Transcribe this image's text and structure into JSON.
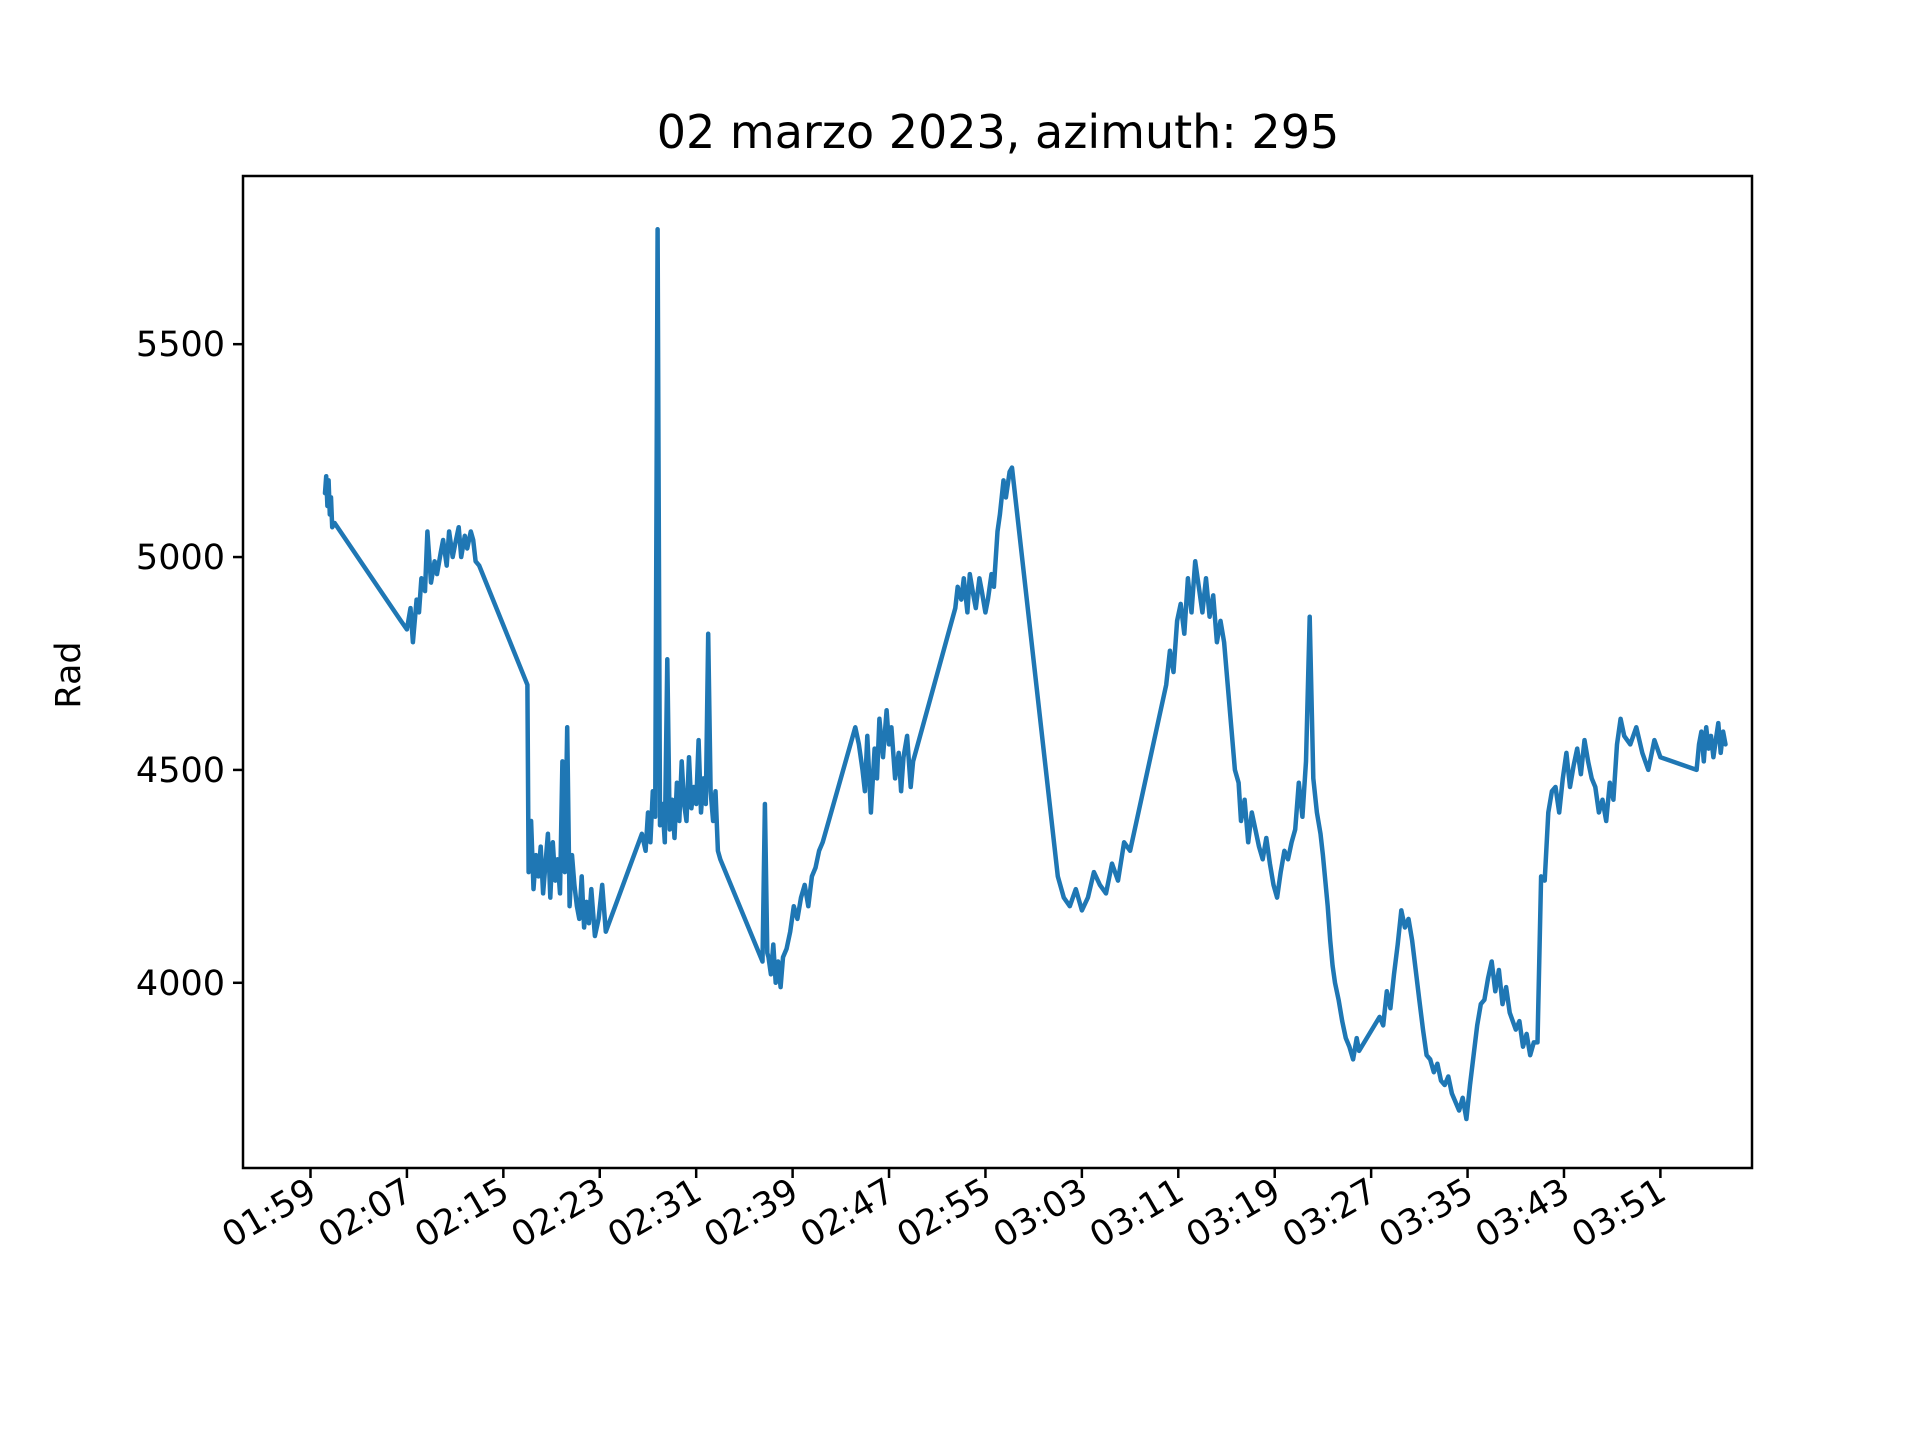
{
  "chart_data": {
    "type": "line",
    "title": "02 marzo 2023, azimuth: 295",
    "xlabel": "",
    "ylabel": "Rad",
    "x_ticks": [
      "01:59",
      "02:07",
      "02:15",
      "02:23",
      "02:31",
      "02:39",
      "02:47",
      "02:55",
      "03:03",
      "03:11",
      "03:19",
      "03:27",
      "03:35",
      "03:43",
      "03:51"
    ],
    "y_ticks": [
      4000,
      4500,
      5000,
      5500
    ],
    "xlim_minutes_of_day": [
      113.4,
      238.6
    ],
    "ylim": [
      3565,
      5895
    ],
    "grid": false,
    "legend": "none",
    "colors": {
      "series": "#1f77b4"
    },
    "series": [
      {
        "x_minutes_of_day": [
          120.2,
          120.3,
          120.4,
          120.5,
          120.6,
          120.7,
          120.8,
          121.0,
          126.5,
          127.0,
          127.3,
          127.5,
          127.8,
          128.0,
          128.2,
          128.5,
          128.7,
          129.0,
          129.3,
          129.5,
          129.8,
          130.0,
          130.3,
          130.5,
          130.8,
          131.0,
          131.3,
          131.5,
          131.8,
          132.0,
          132.3,
          132.5,
          132.7,
          133.0,
          137.0,
          137.1,
          137.3,
          137.5,
          137.7,
          137.9,
          138.1,
          138.3,
          138.5,
          138.7,
          138.9,
          139.1,
          139.3,
          139.5,
          139.7,
          139.9,
          140.1,
          140.3,
          140.5,
          140.7,
          140.9,
          141.1,
          141.3,
          141.5,
          141.7,
          141.9,
          142.1,
          142.3,
          142.6,
          142.9,
          143.2,
          143.5,
          146.5,
          146.8,
          147.0,
          147.2,
          147.4,
          147.6,
          147.8,
          148.0,
          148.2,
          148.4,
          148.6,
          148.8,
          149.0,
          149.2,
          149.4,
          149.6,
          149.8,
          150.0,
          150.2,
          150.4,
          150.6,
          150.8,
          151.0,
          151.2,
          151.4,
          151.6,
          151.8,
          152.0,
          152.2,
          152.4,
          152.6,
          152.8,
          153.0,
          156.5,
          156.7,
          156.9,
          157.0,
          157.2,
          157.4,
          157.6,
          157.8,
          158.0,
          158.2,
          158.5,
          158.8,
          159.1,
          159.4,
          159.7,
          160.0,
          160.3,
          160.6,
          160.9,
          161.2,
          161.5,
          164.2,
          164.5,
          164.8,
          165.0,
          165.2,
          165.5,
          165.8,
          166.0,
          166.2,
          166.5,
          166.8,
          167.0,
          167.2,
          167.5,
          167.8,
          168.0,
          168.2,
          168.5,
          168.8,
          169.0,
          172.5,
          172.7,
          173.0,
          173.2,
          173.5,
          173.7,
          174.0,
          174.2,
          174.5,
          174.7,
          175.0,
          175.2,
          175.5,
          175.7,
          176.0,
          176.2,
          176.5,
          176.7,
          177.0,
          177.2,
          181.0,
          181.5,
          182.0,
          182.5,
          183.0,
          183.5,
          184.0,
          184.5,
          185.0,
          185.5,
          186.0,
          186.5,
          187.0,
          190.0,
          190.3,
          190.6,
          190.9,
          191.2,
          191.5,
          191.8,
          192.1,
          192.4,
          192.7,
          193.0,
          193.3,
          193.6,
          193.9,
          194.2,
          194.5,
          194.8,
          195.1,
          195.4,
          195.7,
          196.0,
          196.2,
          196.5,
          196.8,
          197.1,
          197.4,
          197.7,
          198.0,
          198.3,
          198.6,
          198.9,
          199.2,
          199.5,
          199.8,
          200.1,
          200.4,
          200.7,
          201.0,
          201.3,
          201.6,
          201.9,
          202.2,
          202.5,
          202.8,
          203.0,
          203.2,
          203.4,
          203.6,
          203.8,
          204.0,
          204.3,
          204.6,
          204.9,
          205.2,
          205.5,
          205.8,
          206.0,
          207.7,
          208.0,
          208.3,
          208.6,
          208.9,
          209.2,
          209.5,
          209.8,
          210.1,
          210.4,
          210.7,
          211.0,
          211.3,
          211.6,
          211.9,
          212.2,
          212.5,
          212.8,
          213.1,
          213.4,
          213.7,
          214.0,
          214.3,
          214.6,
          214.9,
          215.2,
          215.5,
          215.8,
          216.1,
          216.4,
          216.7,
          217.0,
          217.3,
          217.6,
          217.9,
          218.2,
          218.5,
          219.0,
          219.3,
          219.6,
          219.9,
          220.2,
          220.5,
          220.8,
          221.1,
          221.4,
          221.7,
          222.0,
          222.3,
          222.6,
          222.9,
          223.2,
          223.5,
          223.8,
          224.1,
          224.4,
          224.7,
          225.0,
          225.3,
          225.6,
          225.9,
          226.2,
          226.5,
          226.8,
          227.1,
          227.4,
          227.7,
          228.0,
          228.5,
          229.0,
          229.5,
          230.0,
          230.5,
          231.0,
          234.0,
          234.2,
          234.4,
          234.6,
          234.8,
          235.0,
          235.2,
          235.4,
          235.6,
          235.8,
          236.0,
          236.2,
          236.4,
          236.6,
          236.8,
          237.0,
          237.2,
          237.4,
          237.6,
          237.8,
          238.0
        ],
        "values": [
          5150,
          5190,
          5120,
          5180,
          5100,
          5140,
          5070,
          5080,
          4850,
          4830,
          4880,
          4800,
          4900,
          4870,
          4950,
          4920,
          5060,
          4940,
          4990,
          4960,
          5010,
          5040,
          4980,
          5060,
          5000,
          5030,
          5070,
          5000,
          5050,
          5020,
          5060,
          5040,
          4990,
          4980,
          4700,
          4260,
          4380,
          4220,
          4300,
          4250,
          4320,
          4210,
          4280,
          4350,
          4200,
          4330,
          4240,
          4290,
          4210,
          4520,
          4260,
          4600,
          4180,
          4300,
          4230,
          4180,
          4150,
          4250,
          4130,
          4190,
          4140,
          4220,
          4110,
          4150,
          4230,
          4120,
          4350,
          4310,
          4400,
          4330,
          4450,
          4390,
          5770,
          4370,
          4420,
          4330,
          4760,
          4360,
          4430,
          4340,
          4470,
          4380,
          4520,
          4420,
          4380,
          4530,
          4410,
          4460,
          4420,
          4570,
          4400,
          4480,
          4420,
          4820,
          4450,
          4380,
          4450,
          4310,
          4290,
          4050,
          4420,
          4070,
          4060,
          4020,
          4090,
          4000,
          4050,
          3990,
          4060,
          4080,
          4120,
          4180,
          4150,
          4200,
          4230,
          4180,
          4250,
          4270,
          4310,
          4330,
          4600,
          4560,
          4500,
          4450,
          4580,
          4400,
          4550,
          4480,
          4620,
          4530,
          4640,
          4560,
          4600,
          4480,
          4540,
          4450,
          4530,
          4580,
          4460,
          4520,
          4880,
          4930,
          4900,
          4950,
          4870,
          4960,
          4910,
          4880,
          4950,
          4920,
          4870,
          4900,
          4960,
          4930,
          5060,
          5100,
          5180,
          5140,
          5200,
          5210,
          4250,
          4200,
          4180,
          4220,
          4170,
          4200,
          4260,
          4230,
          4210,
          4280,
          4240,
          4330,
          4310,
          4700,
          4780,
          4730,
          4850,
          4890,
          4820,
          4950,
          4870,
          4990,
          4930,
          4870,
          4950,
          4860,
          4910,
          4800,
          4850,
          4800,
          4700,
          4600,
          4500,
          4470,
          4380,
          4430,
          4330,
          4400,
          4360,
          4320,
          4290,
          4340,
          4280,
          4230,
          4200,
          4260,
          4310,
          4290,
          4330,
          4360,
          4470,
          4390,
          4520,
          4860,
          4480,
          4400,
          4350,
          4300,
          4240,
          4180,
          4100,
          4040,
          4000,
          3960,
          3910,
          3870,
          3850,
          3820,
          3870,
          3840,
          3920,
          3900,
          3980,
          3940,
          4020,
          4090,
          4170,
          4130,
          4150,
          4100,
          4030,
          3960,
          3890,
          3830,
          3820,
          3790,
          3810,
          3770,
          3760,
          3780,
          3740,
          3720,
          3700,
          3730,
          3680,
          3760,
          3830,
          3900,
          3950,
          3960,
          4010,
          4050,
          3980,
          4030,
          3950,
          3990,
          3930,
          3890,
          3910,
          3850,
          3880,
          3830,
          3860,
          3860,
          4250,
          4240,
          4400,
          4450,
          4460,
          4400,
          4480,
          4540,
          4460,
          4510,
          4550,
          4490,
          4570,
          4520,
          4480,
          4460,
          4400,
          4430,
          4380,
          4470,
          4430,
          4560,
          4620,
          4580,
          4560,
          4600,
          4540,
          4500,
          4570,
          4530,
          4500,
          4560,
          4590,
          4520,
          4600,
          4550,
          4580,
          4530,
          4570,
          4610,
          4540,
          4590,
          4560
        ]
      }
    ]
  }
}
